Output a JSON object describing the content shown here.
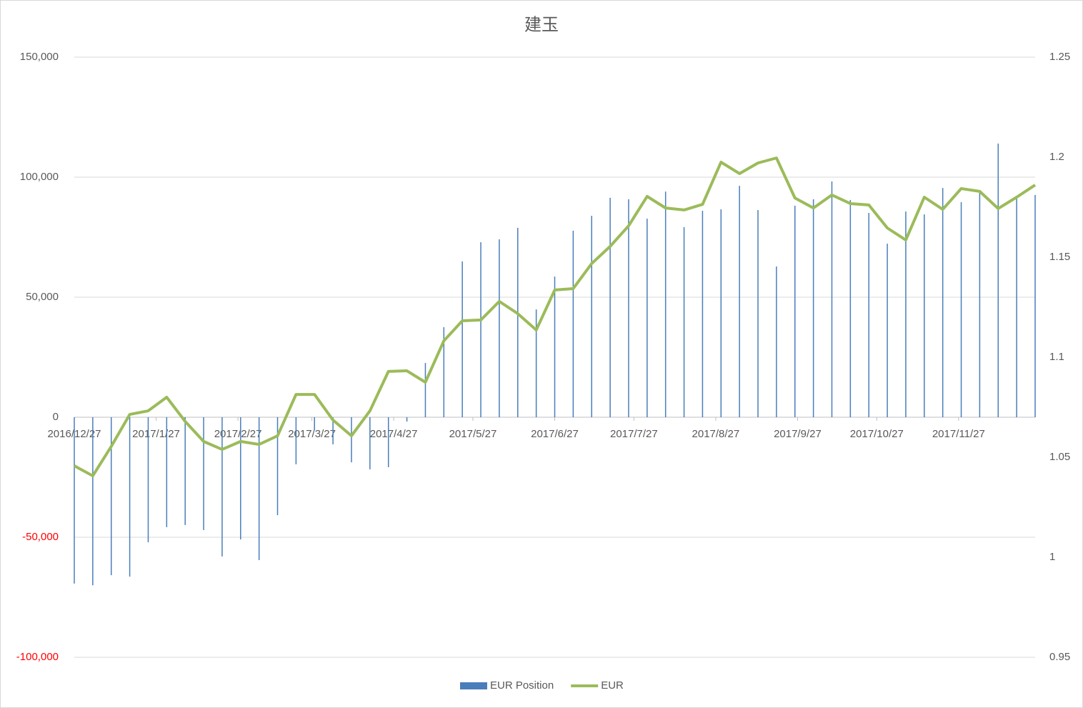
{
  "chart_data": {
    "type": "bar",
    "title": "建玉",
    "x": [
      "2016/12/27",
      "2017/1/3",
      "2017/1/10",
      "2017/1/17",
      "2017/1/24",
      "2017/1/31",
      "2017/2/7",
      "2017/2/14",
      "2017/2/21",
      "2017/2/28",
      "2017/3/7",
      "2017/3/14",
      "2017/3/21",
      "2017/3/28",
      "2017/4/4",
      "2017/4/11",
      "2017/4/18",
      "2017/4/25",
      "2017/5/2",
      "2017/5/9",
      "2017/5/16",
      "2017/5/23",
      "2017/5/30",
      "2017/6/6",
      "2017/6/13",
      "2017/6/20",
      "2017/6/27",
      "2017/7/4",
      "2017/7/11",
      "2017/7/18",
      "2017/7/25",
      "2017/8/1",
      "2017/8/8",
      "2017/8/15",
      "2017/8/22",
      "2017/8/29",
      "2017/9/5",
      "2017/9/12",
      "2017/9/19",
      "2017/9/26",
      "2017/10/3",
      "2017/10/10",
      "2017/10/17",
      "2017/10/24",
      "2017/10/31",
      "2017/11/7",
      "2017/11/14",
      "2017/11/21",
      "2017/11/28",
      "2017/12/5",
      "2017/12/12",
      "2017/12/19",
      "2017/12/26"
    ],
    "xlim": [
      "2016/12/27",
      "2017/12/26"
    ],
    "xticks": [
      "2016/12/27",
      "2017/1/27",
      "2017/2/27",
      "2017/3/27",
      "2017/4/27",
      "2017/5/27",
      "2017/6/27",
      "2017/7/27",
      "2017/8/27",
      "2017/9/27",
      "2017/10/27",
      "2017/11/27"
    ],
    "series": [
      {
        "name": "EUR Position",
        "type": "bar",
        "color": "#4a7ebb",
        "values": [
          -69300,
          -70000,
          -65800,
          -66400,
          -52100,
          -45800,
          -44900,
          -47000,
          -58000,
          -50900,
          -59500,
          -40800,
          -19600,
          -5400,
          -11300,
          -18800,
          -21700,
          -20800,
          -1800,
          22600,
          37500,
          64900,
          72900,
          74100,
          78900,
          44900,
          58600,
          77700,
          83900,
          91400,
          90800,
          82700,
          94000,
          79200,
          86000,
          86600,
          96400,
          86300,
          62800,
          88100,
          90800,
          98200,
          90500,
          85100,
          72300,
          85700,
          84500,
          95500,
          89600,
          93500,
          114000,
          91000,
          92600
        ]
      },
      {
        "name": "EUR",
        "type": "line",
        "color": "#9bbb59",
        "axis": "y2",
        "values": [
          1.0457,
          1.0407,
          1.0554,
          1.0714,
          1.0732,
          1.08,
          1.0679,
          1.0579,
          1.0539,
          1.0579,
          1.0564,
          1.0607,
          1.0814,
          1.0814,
          1.0686,
          1.0607,
          1.0732,
          1.0929,
          1.0932,
          1.0875,
          1.1082,
          1.1182,
          1.1186,
          1.1279,
          1.1218,
          1.1136,
          1.1336,
          1.1343,
          1.1468,
          1.1554,
          1.1657,
          1.1804,
          1.1746,
          1.1736,
          1.1764,
          1.1975,
          1.1918,
          1.1971,
          1.1996,
          1.1796,
          1.1746,
          1.1811,
          1.1768,
          1.1761,
          1.1646,
          1.1586,
          1.18,
          1.1739,
          1.1843,
          1.1829,
          1.1743,
          1.18,
          1.1861
        ]
      }
    ],
    "ylim": [
      -100000,
      150000
    ],
    "yticks": [
      {
        "value": -100000,
        "label": "-100,000"
      },
      {
        "value": -50000,
        "label": "-50,000"
      },
      0,
      {
        "value": 50000,
        "label": "50,000"
      },
      {
        "value": 100000,
        "label": "100,000"
      },
      {
        "value": 150000,
        "label": "150,000"
      }
    ],
    "negative_tick_color": "#ff0000",
    "y2lim": [
      0.95,
      1.25
    ],
    "y2ticks": [
      0.95,
      1,
      1.05,
      1.1,
      1.15,
      1.2,
      1.25
    ],
    "grid": true,
    "legend": "bottom"
  }
}
